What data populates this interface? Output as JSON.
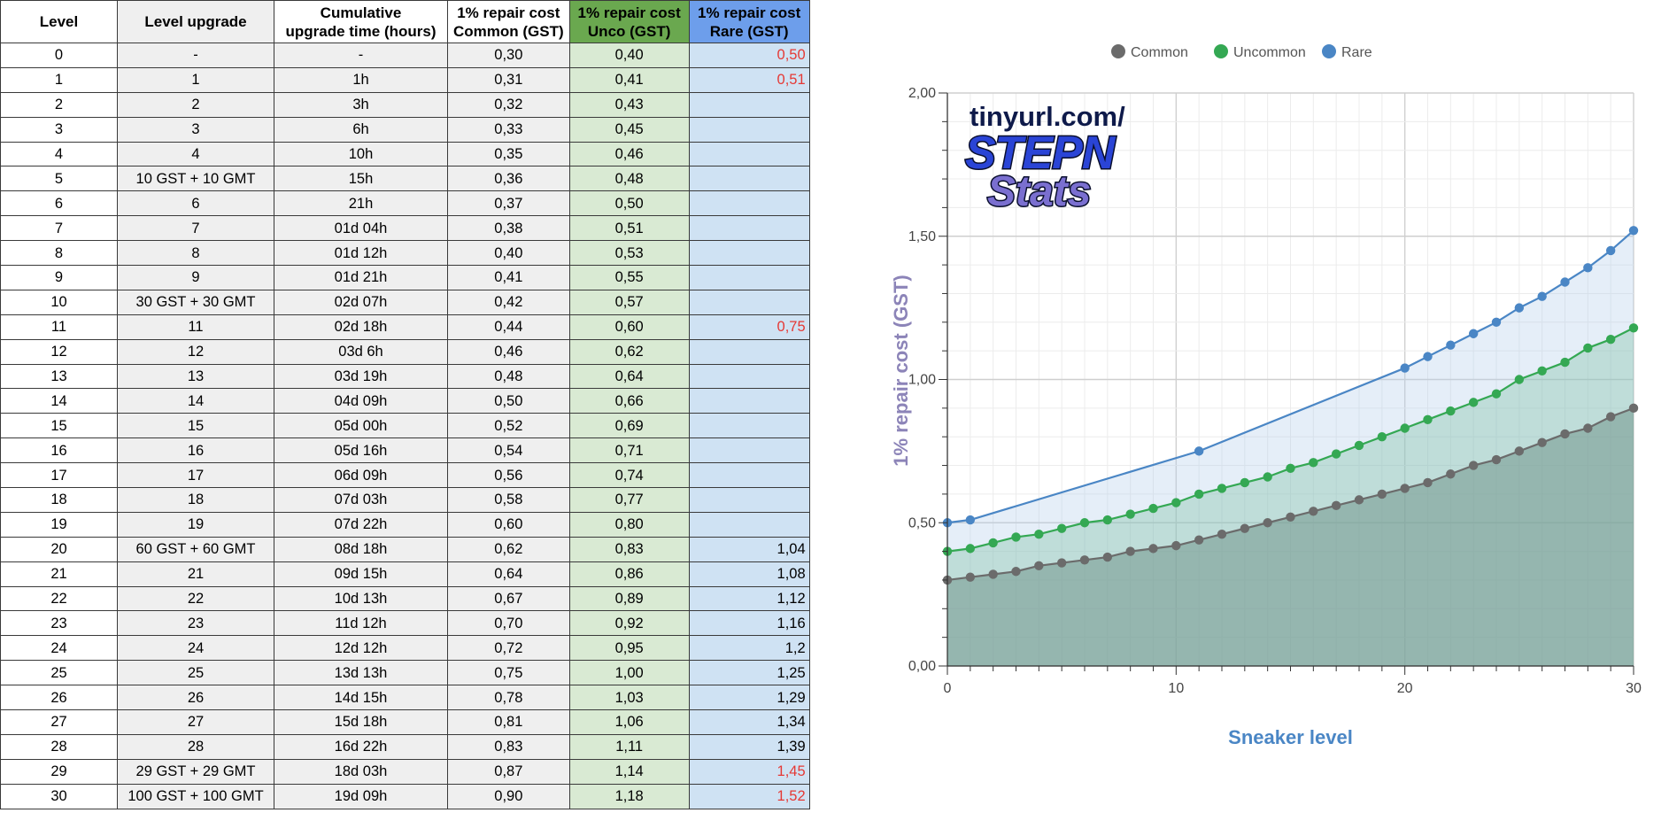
{
  "table": {
    "headers": {
      "level": "Level",
      "upgrade": "Level upgrade",
      "time_line1": "Cumulative",
      "time_line2": "upgrade time (hours)",
      "common_line1": "1% repair cost",
      "common_line2": "Common (GST)",
      "unco_line1": "1% repair cost",
      "unco_line2": "Unco (GST)",
      "rare_line1": "1% repair cost",
      "rare_line2": "Rare (GST)"
    },
    "rows": [
      {
        "level": "0",
        "upgrade": "-",
        "time": "-",
        "common": "0,30",
        "unco": "0,40",
        "rare": "0,50",
        "rare_red": true
      },
      {
        "level": "1",
        "upgrade": "1",
        "time": "1h",
        "common": "0,31",
        "unco": "0,41",
        "rare": "0,51",
        "rare_red": true
      },
      {
        "level": "2",
        "upgrade": "2",
        "time": "3h",
        "common": "0,32",
        "unco": "0,43",
        "rare": "",
        "rare_red": false
      },
      {
        "level": "3",
        "upgrade": "3",
        "time": "6h",
        "common": "0,33",
        "unco": "0,45",
        "rare": "",
        "rare_red": false
      },
      {
        "level": "4",
        "upgrade": "4",
        "time": "10h",
        "common": "0,35",
        "unco": "0,46",
        "rare": "",
        "rare_red": false
      },
      {
        "level": "5",
        "upgrade": "10 GST + 10 GMT",
        "time": "15h",
        "common": "0,36",
        "unco": "0,48",
        "rare": "",
        "rare_red": false
      },
      {
        "level": "6",
        "upgrade": "6",
        "time": "21h",
        "common": "0,37",
        "unco": "0,50",
        "rare": "",
        "rare_red": false
      },
      {
        "level": "7",
        "upgrade": "7",
        "time": "01d 04h",
        "common": "0,38",
        "unco": "0,51",
        "rare": "",
        "rare_red": false
      },
      {
        "level": "8",
        "upgrade": "8",
        "time": "01d 12h",
        "common": "0,40",
        "unco": "0,53",
        "rare": "",
        "rare_red": false
      },
      {
        "level": "9",
        "upgrade": "9",
        "time": "01d 21h",
        "common": "0,41",
        "unco": "0,55",
        "rare": "",
        "rare_red": false
      },
      {
        "level": "10",
        "upgrade": "30 GST + 30 GMT",
        "time": "02d 07h",
        "common": "0,42",
        "unco": "0,57",
        "rare": "",
        "rare_red": false
      },
      {
        "level": "11",
        "upgrade": "11",
        "time": "02d 18h",
        "common": "0,44",
        "unco": "0,60",
        "rare": "0,75",
        "rare_red": true
      },
      {
        "level": "12",
        "upgrade": "12",
        "time": "03d 6h",
        "common": "0,46",
        "unco": "0,62",
        "rare": "",
        "rare_red": false
      },
      {
        "level": "13",
        "upgrade": "13",
        "time": "03d 19h",
        "common": "0,48",
        "unco": "0,64",
        "rare": "",
        "rare_red": false
      },
      {
        "level": "14",
        "upgrade": "14",
        "time": "04d 09h",
        "common": "0,50",
        "unco": "0,66",
        "rare": "",
        "rare_red": false
      },
      {
        "level": "15",
        "upgrade": "15",
        "time": "05d 00h",
        "common": "0,52",
        "unco": "0,69",
        "rare": "",
        "rare_red": false
      },
      {
        "level": "16",
        "upgrade": "16",
        "time": "05d 16h",
        "common": "0,54",
        "unco": "0,71",
        "rare": "",
        "rare_red": false
      },
      {
        "level": "17",
        "upgrade": "17",
        "time": "06d 09h",
        "common": "0,56",
        "unco": "0,74",
        "rare": "",
        "rare_red": false
      },
      {
        "level": "18",
        "upgrade": "18",
        "time": "07d 03h",
        "common": "0,58",
        "unco": "0,77",
        "rare": "",
        "rare_red": false
      },
      {
        "level": "19",
        "upgrade": "19",
        "time": "07d 22h",
        "common": "0,60",
        "unco": "0,80",
        "rare": "",
        "rare_red": false
      },
      {
        "level": "20",
        "upgrade": "60 GST + 60 GMT",
        "time": "08d 18h",
        "common": "0,62",
        "unco": "0,83",
        "rare": "1,04",
        "rare_red": false
      },
      {
        "level": "21",
        "upgrade": "21",
        "time": "09d 15h",
        "common": "0,64",
        "unco": "0,86",
        "rare": "1,08",
        "rare_red": false
      },
      {
        "level": "22",
        "upgrade": "22",
        "time": "10d 13h",
        "common": "0,67",
        "unco": "0,89",
        "rare": "1,12",
        "rare_red": false
      },
      {
        "level": "23",
        "upgrade": "23",
        "time": "11d 12h",
        "common": "0,70",
        "unco": "0,92",
        "rare": "1,16",
        "rare_red": false
      },
      {
        "level": "24",
        "upgrade": "24",
        "time": "12d 12h",
        "common": "0,72",
        "unco": "0,95",
        "rare": "1,2",
        "rare_red": false
      },
      {
        "level": "25",
        "upgrade": "25",
        "time": "13d 13h",
        "common": "0,75",
        "unco": "1,00",
        "rare": "1,25",
        "rare_red": false
      },
      {
        "level": "26",
        "upgrade": "26",
        "time": "14d 15h",
        "common": "0,78",
        "unco": "1,03",
        "rare": "1,29",
        "rare_red": false
      },
      {
        "level": "27",
        "upgrade": "27",
        "time": "15d 18h",
        "common": "0,81",
        "unco": "1,06",
        "rare": "1,34",
        "rare_red": false
      },
      {
        "level": "28",
        "upgrade": "28",
        "time": "16d 22h",
        "common": "0,83",
        "unco": "1,11",
        "rare": "1,39",
        "rare_red": false
      },
      {
        "level": "29",
        "upgrade": "29 GST + 29 GMT",
        "time": "18d 03h",
        "common": "0,87",
        "unco": "1,14",
        "rare": "1,45",
        "rare_red": true
      },
      {
        "level": "30",
        "upgrade": "100 GST + 100 GMT",
        "time": "19d 09h",
        "common": "0,90",
        "unco": "1,18",
        "rare": "1,52",
        "rare_red": true
      }
    ]
  },
  "watermark": {
    "line1": "tinyurl.com/",
    "line2": "STEPN",
    "line3": "Stats"
  },
  "colors": {
    "common": "#6b6b6b",
    "uncommon": "#34a853",
    "rare": "#4a86c5",
    "red_text": "#e53935",
    "header_green": "#6aa84f",
    "header_blue": "#6d9eeb",
    "cell_green": "#d9ead3",
    "cell_blue": "#cfe2f3",
    "cell_grey": "#efefef"
  },
  "chart_data": {
    "type": "area",
    "title": "",
    "xlabel": "Sneaker level",
    "ylabel": "1% repair cost (GST)",
    "xlim": [
      0,
      30
    ],
    "ylim": [
      0,
      2
    ],
    "x_ticks": [
      "0",
      "10",
      "20",
      "30"
    ],
    "y_ticks": [
      "0,00",
      "0,50",
      "1,00",
      "1,50",
      "2,00"
    ],
    "grid": true,
    "legend_position": "top-center",
    "series": [
      {
        "name": "Common",
        "color": "#6b6b6b",
        "fill": "rgba(115,150,140,0.55)",
        "x": [
          0,
          1,
          2,
          3,
          4,
          5,
          6,
          7,
          8,
          9,
          10,
          11,
          12,
          13,
          14,
          15,
          16,
          17,
          18,
          19,
          20,
          21,
          22,
          23,
          24,
          25,
          26,
          27,
          28,
          29,
          30
        ],
        "values": [
          0.3,
          0.31,
          0.32,
          0.33,
          0.35,
          0.36,
          0.37,
          0.38,
          0.4,
          0.41,
          0.42,
          0.44,
          0.46,
          0.48,
          0.5,
          0.52,
          0.54,
          0.56,
          0.58,
          0.6,
          0.62,
          0.64,
          0.67,
          0.7,
          0.72,
          0.75,
          0.78,
          0.81,
          0.83,
          0.87,
          0.9
        ]
      },
      {
        "name": "Uncommon",
        "color": "#34a853",
        "fill": "rgba(120,190,160,0.35)",
        "x": [
          0,
          1,
          2,
          3,
          4,
          5,
          6,
          7,
          8,
          9,
          10,
          11,
          12,
          13,
          14,
          15,
          16,
          17,
          18,
          19,
          20,
          21,
          22,
          23,
          24,
          25,
          26,
          27,
          28,
          29,
          30
        ],
        "values": [
          0.4,
          0.41,
          0.43,
          0.45,
          0.46,
          0.48,
          0.5,
          0.51,
          0.53,
          0.55,
          0.57,
          0.6,
          0.62,
          0.64,
          0.66,
          0.69,
          0.71,
          0.74,
          0.77,
          0.8,
          0.83,
          0.86,
          0.89,
          0.92,
          0.95,
          1.0,
          1.03,
          1.06,
          1.11,
          1.14,
          1.18
        ]
      },
      {
        "name": "Rare",
        "color": "#4a86c5",
        "fill": "rgba(180,205,235,0.35)",
        "x": [
          0,
          1,
          11,
          20,
          21,
          22,
          23,
          24,
          25,
          26,
          27,
          28,
          29,
          30
        ],
        "values": [
          0.5,
          0.51,
          0.75,
          1.04,
          1.08,
          1.12,
          1.16,
          1.2,
          1.25,
          1.29,
          1.34,
          1.39,
          1.45,
          1.52
        ]
      }
    ]
  }
}
